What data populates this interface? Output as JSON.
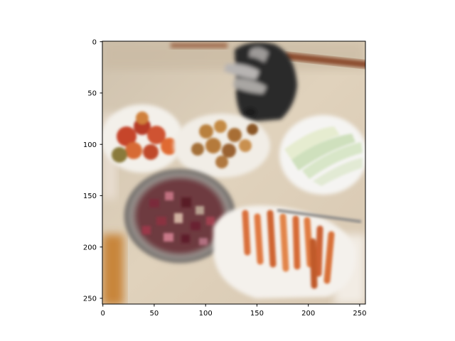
{
  "figure": {
    "axes": {
      "x_ticks": [
        "0",
        "50",
        "100",
        "150",
        "200",
        "250"
      ],
      "y_ticks": [
        "0",
        "50",
        "100",
        "150",
        "200",
        "250"
      ],
      "x_tick_values": [
        0,
        50,
        100,
        150,
        200,
        250
      ],
      "y_tick_values": [
        0,
        50,
        100,
        150,
        200,
        250
      ],
      "xlim": [
        0,
        256
      ],
      "ylim": [
        256,
        0
      ]
    },
    "image": {
      "icon": "food-photo"
    },
    "colors": {
      "tablecloth": "#dccbb4",
      "bowl_white": "#f3f0ea",
      "bowl_steel": "#8e8a86",
      "tomato": "#c6442a",
      "nuts": "#b9803e",
      "cucumber": "#cfe0bd",
      "fries": "#d9703a",
      "beets": "#7a2a3a",
      "dark_object": "#2b2a2c"
    }
  }
}
